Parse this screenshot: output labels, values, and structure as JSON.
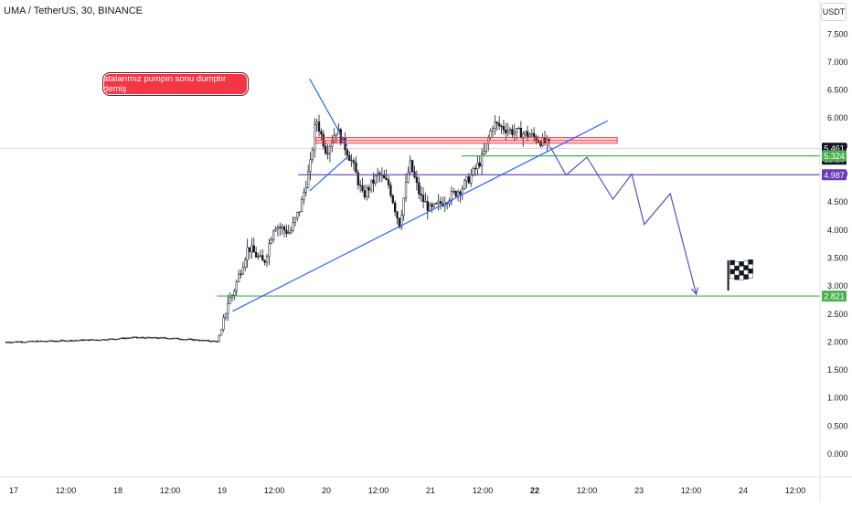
{
  "header": {
    "symbol": "UMA / TetherUS, 30, BINANCE",
    "currency": "USDT"
  },
  "annotation": {
    "text": "atalarımız pumpın sonu dumptır demiş"
  },
  "colors": {
    "candle": "#131722",
    "trendline": "#2962ff",
    "support": "#4caf50",
    "resistance": "#f23645",
    "neutral": "#673ab7",
    "projection": "#5b4fc4",
    "price_tag": "#131722"
  },
  "chart_data": {
    "type": "candlestick",
    "title": "UMA / TetherUS, 30, BINANCE",
    "ylim": [
      0,
      8
    ],
    "y_ticks": [
      "7.500",
      "7.000",
      "6.500",
      "6.000",
      "5.500",
      "5.000",
      "4.500",
      "4.000",
      "3.500",
      "3.000",
      "2.500",
      "2.000",
      "1.500",
      "1.000",
      "0.500",
      "0.000"
    ],
    "x_ticks": [
      {
        "label": "17",
        "t": 17.0
      },
      {
        "label": "12:00",
        "t": 17.5
      },
      {
        "label": "18",
        "t": 18.0
      },
      {
        "label": "12:00",
        "t": 18.5
      },
      {
        "label": "19",
        "t": 19.0
      },
      {
        "label": "12:00",
        "t": 19.5
      },
      {
        "label": "20",
        "t": 20.0
      },
      {
        "label": "12:00",
        "t": 20.5
      },
      {
        "label": "21",
        "t": 21.0
      },
      {
        "label": "12:00",
        "t": 21.5
      },
      {
        "label": "22",
        "t": 22.0,
        "bold": true
      },
      {
        "label": "12:00",
        "t": 22.5
      },
      {
        "label": "23",
        "t": 23.0
      },
      {
        "label": "12:00",
        "t": 23.5
      },
      {
        "label": "24",
        "t": 24.0
      },
      {
        "label": "12:00",
        "t": 24.5
      }
    ],
    "price_path": [
      [
        16.93,
        2.0
      ],
      [
        17.4,
        2.02
      ],
      [
        17.8,
        2.04
      ],
      [
        18.0,
        2.06
      ],
      [
        18.15,
        2.08
      ],
      [
        18.5,
        2.07
      ],
      [
        18.8,
        2.03
      ],
      [
        18.95,
        2.01
      ],
      [
        19.0,
        2.25
      ],
      [
        19.05,
        2.7
      ],
      [
        19.1,
        2.85
      ],
      [
        19.25,
        3.7
      ],
      [
        19.4,
        3.4
      ],
      [
        19.5,
        4.1
      ],
      [
        19.65,
        3.95
      ],
      [
        19.75,
        4.4
      ],
      [
        19.85,
        5.2
      ],
      [
        19.9,
        6.0
      ],
      [
        20.0,
        5.4
      ],
      [
        20.1,
        5.8
      ],
      [
        20.25,
        5.2
      ],
      [
        20.35,
        4.6
      ],
      [
        20.5,
        5.0
      ],
      [
        20.6,
        4.8
      ],
      [
        20.7,
        4.1
      ],
      [
        20.8,
        5.2
      ],
      [
        20.9,
        4.6
      ],
      [
        21.0,
        4.35
      ],
      [
        21.15,
        4.55
      ],
      [
        21.3,
        4.75
      ],
      [
        21.4,
        5.0
      ],
      [
        21.5,
        5.3
      ],
      [
        21.6,
        5.9
      ],
      [
        21.8,
        5.75
      ],
      [
        21.95,
        5.7
      ],
      [
        22.15,
        5.5
      ]
    ],
    "current_price": "5.461",
    "countdown": "12:28",
    "levels": [
      {
        "name": "level-5324",
        "value": 5.324,
        "label": "5.324",
        "color": "#4caf50",
        "t_start": 21.3
      },
      {
        "name": "level-4987",
        "value": 4.987,
        "label": "4.987",
        "color": "#673ab7",
        "t_start": 19.73
      },
      {
        "name": "level-2821",
        "value": 2.821,
        "label": "2.821",
        "color": "#4caf50",
        "t_start": 18.95
      }
    ],
    "resistance_zone": {
      "t_start": 19.9,
      "t_end": 22.79,
      "y_top": 5.65,
      "y_bottom": 5.55
    },
    "trendlines": [
      {
        "name": "rising-trendline",
        "points": [
          [
            19.1,
            2.55
          ],
          [
            22.7,
            5.95
          ]
        ]
      },
      {
        "name": "triangle-upper",
        "points": [
          [
            19.84,
            6.7
          ],
          [
            20.2,
            5.5
          ]
        ]
      },
      {
        "name": "triangle-lower",
        "points": [
          [
            19.84,
            4.7
          ],
          [
            20.2,
            5.3
          ]
        ]
      }
    ],
    "projection_path": [
      [
        22.15,
        5.48
      ],
      [
        22.3,
        4.98
      ],
      [
        22.5,
        5.3
      ],
      [
        22.75,
        4.55
      ],
      [
        22.93,
        5.0
      ],
      [
        23.05,
        4.1
      ],
      [
        23.3,
        4.65
      ],
      [
        23.55,
        2.85
      ]
    ],
    "flag": {
      "t": 23.97,
      "y": 3.1
    }
  }
}
